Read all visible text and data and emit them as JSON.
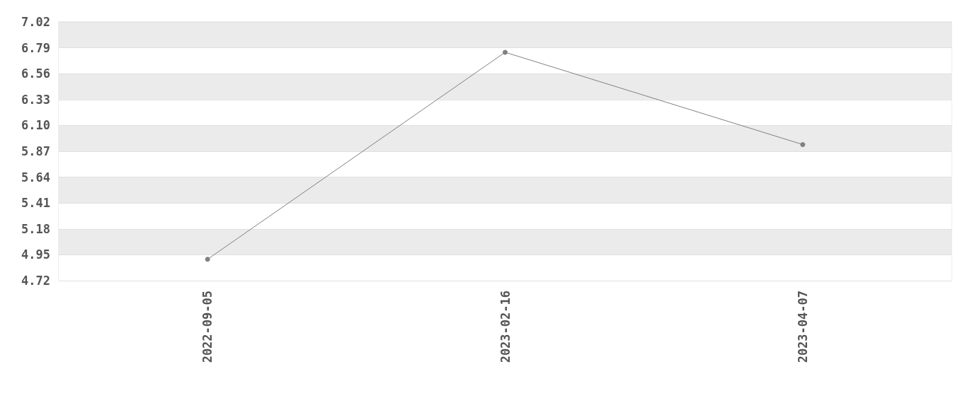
{
  "chart_data": {
    "type": "line",
    "categories": [
      "2022-09-05",
      "2023-02-16",
      "2023-04-07"
    ],
    "series": [
      {
        "color": "#808080",
        "values": [
          4.91,
          6.75,
          5.93
        ]
      }
    ],
    "ylim": [
      4.72,
      7.02
    ],
    "yticks": [
      4.72,
      4.95,
      5.18,
      5.41,
      5.64,
      5.87,
      {
        "value": 6.1,
        "label": "6.10"
      },
      6.33,
      6.56,
      6.79,
      7.02
    ],
    "grid": true,
    "marker": "circle",
    "line_style": "solid"
  }
}
